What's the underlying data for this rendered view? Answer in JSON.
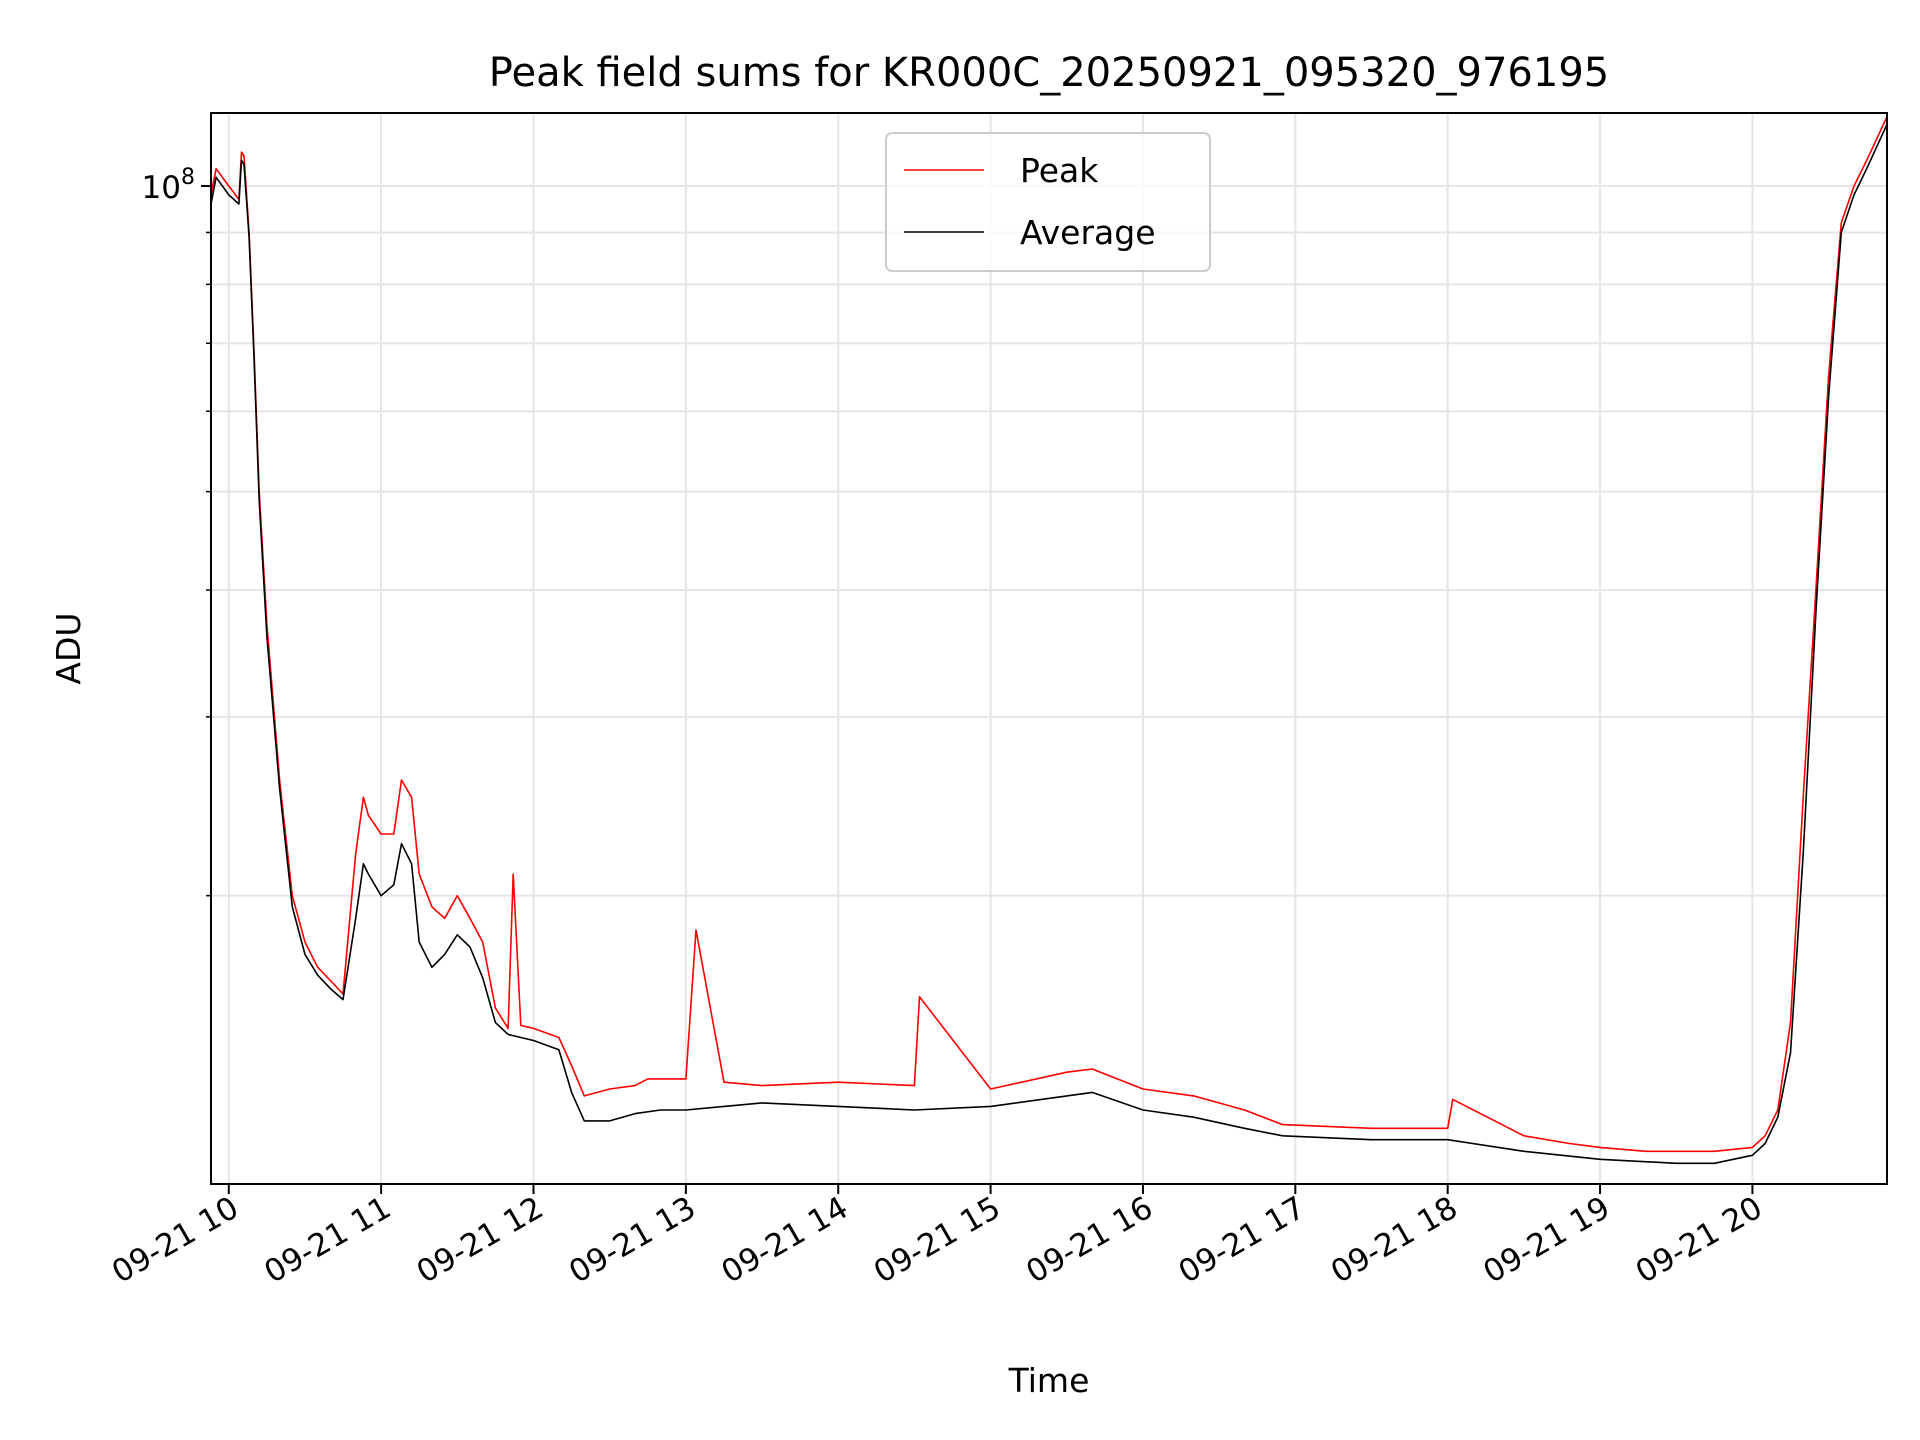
{
  "chart_data": {
    "type": "line",
    "title": "Peak field sums for KR000C_20250921_095320_976195",
    "xlabel": "Time",
    "ylabel": "ADU",
    "x_scale": "time",
    "y_scale": "log",
    "xlim": [
      "2025-09-21 09:53",
      "2025-09-21 20:53"
    ],
    "ylim": [
      10400000,
      118000000
    ],
    "x_ticks": [
      {
        "label": "09-21 10",
        "value": "2025-09-21 10:00"
      },
      {
        "label": "09-21 11",
        "value": "2025-09-21 11:00"
      },
      {
        "label": "09-21 12",
        "value": "2025-09-21 12:00"
      },
      {
        "label": "09-21 13",
        "value": "2025-09-21 13:00"
      },
      {
        "label": "09-21 14",
        "value": "2025-09-21 14:00"
      },
      {
        "label": "09-21 15",
        "value": "2025-09-21 15:00"
      },
      {
        "label": "09-21 16",
        "value": "2025-09-21 16:00"
      },
      {
        "label": "09-21 17",
        "value": "2025-09-21 17:00"
      },
      {
        "label": "09-21 18",
        "value": "2025-09-21 18:00"
      },
      {
        "label": "09-21 19",
        "value": "2025-09-21 19:00"
      },
      {
        "label": "09-21 20",
        "value": "2025-09-21 20:00"
      }
    ],
    "y_major_tick": {
      "base": "10",
      "exponent": "8",
      "value": 100000000
    },
    "y_minor_ticks": [
      20000000,
      30000000,
      40000000,
      50000000,
      60000000,
      70000000,
      80000000,
      90000000
    ],
    "grid": true,
    "legend_position": "top-center",
    "series": [
      {
        "name": "Peak",
        "color": "#ff0000",
        "x": [
          "2025-09-21 09:53",
          "2025-09-21 09:55",
          "2025-09-21 10:00",
          "2025-09-21 10:04",
          "2025-09-21 10:05",
          "2025-09-21 10:06",
          "2025-09-21 10:08",
          "2025-09-21 10:10",
          "2025-09-21 10:12",
          "2025-09-21 10:15",
          "2025-09-21 10:20",
          "2025-09-21 10:25",
          "2025-09-21 10:30",
          "2025-09-21 10:35",
          "2025-09-21 10:40",
          "2025-09-21 10:45",
          "2025-09-21 10:50",
          "2025-09-21 10:53",
          "2025-09-21 10:55",
          "2025-09-21 11:00",
          "2025-09-21 11:05",
          "2025-09-21 11:08",
          "2025-09-21 11:12",
          "2025-09-21 11:15",
          "2025-09-21 11:20",
          "2025-09-21 11:25",
          "2025-09-21 11:30",
          "2025-09-21 11:35",
          "2025-09-21 11:40",
          "2025-09-21 11:45",
          "2025-09-21 11:50",
          "2025-09-21 11:52",
          "2025-09-21 11:55",
          "2025-09-21 12:00",
          "2025-09-21 12:10",
          "2025-09-21 12:15",
          "2025-09-21 12:20",
          "2025-09-21 12:30",
          "2025-09-21 12:40",
          "2025-09-21 12:45",
          "2025-09-21 12:50",
          "2025-09-21 13:00",
          "2025-09-21 13:04",
          "2025-09-21 13:15",
          "2025-09-21 13:30",
          "2025-09-21 14:00",
          "2025-09-21 14:30",
          "2025-09-21 14:32",
          "2025-09-21 15:00",
          "2025-09-21 15:30",
          "2025-09-21 15:40",
          "2025-09-21 16:00",
          "2025-09-21 16:20",
          "2025-09-21 16:40",
          "2025-09-21 16:55",
          "2025-09-21 17:30",
          "2025-09-21 18:00",
          "2025-09-21 18:02",
          "2025-09-21 18:30",
          "2025-09-21 18:48",
          "2025-09-21 19:00",
          "2025-09-21 19:18",
          "2025-09-21 19:30",
          "2025-09-21 19:45",
          "2025-09-21 20:00",
          "2025-09-21 20:05",
          "2025-09-21 20:10",
          "2025-09-21 20:15",
          "2025-09-21 20:20",
          "2025-09-21 20:25",
          "2025-09-21 20:30",
          "2025-09-21 20:35",
          "2025-09-21 20:40",
          "2025-09-21 20:45",
          "2025-09-21 20:53"
        ],
        "values": [
          98000000,
          104000000,
          100000000,
          97000000,
          108000000,
          107000000,
          90000000,
          68000000,
          50000000,
          37000000,
          26000000,
          20000000,
          18000000,
          17000000,
          16500000,
          16000000,
          22000000,
          25000000,
          24000000,
          23000000,
          23000000,
          26000000,
          25000000,
          21000000,
          19500000,
          19000000,
          20000000,
          19000000,
          18000000,
          15500000,
          14800000,
          21000000,
          14900000,
          14800000,
          14500000,
          13600000,
          12700000,
          12900000,
          13000000,
          13200000,
          13200000,
          13200000,
          18500000,
          13100000,
          13000000,
          13100000,
          13000000,
          15900000,
          12900000,
          13400000,
          13500000,
          12900000,
          12700000,
          12300000,
          11900000,
          11800000,
          11800000,
          12600000,
          11600000,
          11400000,
          11300000,
          11200000,
          11200000,
          11200000,
          11300000,
          11600000,
          12300000,
          15000000,
          25000000,
          40000000,
          65000000,
          92000000,
          100000000,
          106000000,
          117000000
        ]
      },
      {
        "name": "Average",
        "color": "#000000",
        "x": [
          "2025-09-21 09:53",
          "2025-09-21 09:55",
          "2025-09-21 10:00",
          "2025-09-21 10:04",
          "2025-09-21 10:05",
          "2025-09-21 10:06",
          "2025-09-21 10:08",
          "2025-09-21 10:10",
          "2025-09-21 10:12",
          "2025-09-21 10:15",
          "2025-09-21 10:20",
          "2025-09-21 10:25",
          "2025-09-21 10:30",
          "2025-09-21 10:35",
          "2025-09-21 10:40",
          "2025-09-21 10:45",
          "2025-09-21 10:50",
          "2025-09-21 10:53",
          "2025-09-21 10:55",
          "2025-09-21 11:00",
          "2025-09-21 11:05",
          "2025-09-21 11:08",
          "2025-09-21 11:12",
          "2025-09-21 11:15",
          "2025-09-21 11:20",
          "2025-09-21 11:25",
          "2025-09-21 11:30",
          "2025-09-21 11:35",
          "2025-09-21 11:40",
          "2025-09-21 11:45",
          "2025-09-21 11:50",
          "2025-09-21 11:55",
          "2025-09-21 12:00",
          "2025-09-21 12:10",
          "2025-09-21 12:15",
          "2025-09-21 12:20",
          "2025-09-21 12:30",
          "2025-09-21 12:40",
          "2025-09-21 12:50",
          "2025-09-21 13:00",
          "2025-09-21 13:15",
          "2025-09-21 13:30",
          "2025-09-21 14:00",
          "2025-09-21 14:30",
          "2025-09-21 15:00",
          "2025-09-21 15:30",
          "2025-09-21 15:40",
          "2025-09-21 16:00",
          "2025-09-21 16:20",
          "2025-09-21 16:40",
          "2025-09-21 16:55",
          "2025-09-21 17:30",
          "2025-09-21 18:00",
          "2025-09-21 18:30",
          "2025-09-21 19:00",
          "2025-09-21 19:30",
          "2025-09-21 19:45",
          "2025-09-21 20:00",
          "2025-09-21 20:05",
          "2025-09-21 20:10",
          "2025-09-21 20:15",
          "2025-09-21 20:20",
          "2025-09-21 20:25",
          "2025-09-21 20:30",
          "2025-09-21 20:35",
          "2025-09-21 20:40",
          "2025-09-21 20:45",
          "2025-09-21 20:53"
        ],
        "values": [
          96000000,
          102000000,
          98000000,
          96000000,
          106000000,
          105000000,
          89000000,
          67000000,
          49000000,
          36000000,
          25500000,
          19500000,
          17500000,
          16700000,
          16200000,
          15800000,
          19000000,
          21500000,
          21000000,
          20000000,
          20500000,
          22500000,
          21500000,
          18000000,
          17000000,
          17500000,
          18300000,
          17800000,
          16600000,
          15000000,
          14600000,
          14500000,
          14400000,
          14100000,
          12800000,
          12000000,
          12000000,
          12200000,
          12300000,
          12300000,
          12400000,
          12500000,
          12400000,
          12300000,
          12400000,
          12700000,
          12800000,
          12300000,
          12100000,
          11800000,
          11600000,
          11500000,
          11500000,
          11200000,
          11000000,
          10900000,
          10900000,
          11100000,
          11400000,
          12100000,
          14000000,
          22000000,
          38000000,
          62000000,
          90000000,
          98000000,
          104000000,
          115000000
        ]
      }
    ]
  }
}
